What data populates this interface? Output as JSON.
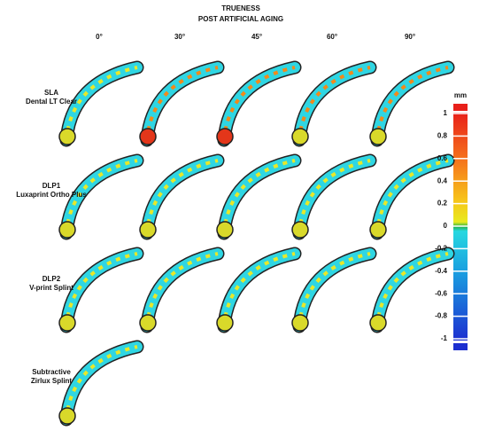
{
  "title": [
    "TRUENESS",
    "POST ARTIFICIAL AGING"
  ],
  "columns": [
    "0°",
    "30°",
    "45°",
    "60°",
    "90°"
  ],
  "rows": [
    {
      "label": [
        "SLA",
        "Dental LT Clear"
      ]
    },
    {
      "label": [
        "DLP1",
        "Luxaprint Ortho Plus"
      ]
    },
    {
      "label": [
        "DLP2",
        "V-print Splint"
      ]
    },
    {
      "label": [
        "Subtractive",
        "Zirlux Splint"
      ]
    }
  ],
  "colorbar": {
    "unit": "mm",
    "ticks": [
      1,
      0.8,
      0.6,
      0.4,
      0.2,
      0,
      -0.2,
      -0.4,
      -0.6,
      -0.8,
      -1
    ]
  }
}
